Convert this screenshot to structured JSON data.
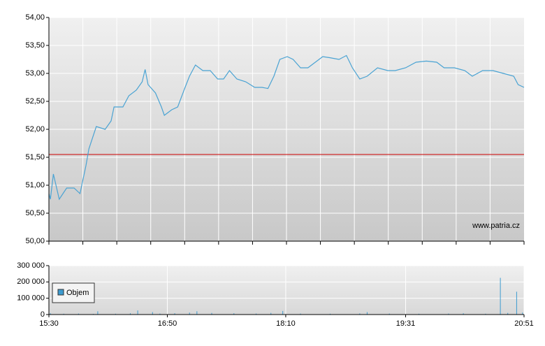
{
  "chart_data": [
    {
      "type": "line",
      "color": "#4aa3d3",
      "x": [
        "15:30",
        "15:31",
        "15:33",
        "15:37",
        "15:42",
        "15:47",
        "15:51",
        "15:55",
        "15:57",
        "16:02",
        "16:08",
        "16:12",
        "16:14",
        "16:20",
        "16:24",
        "16:29",
        "16:33",
        "16:35",
        "16:37",
        "16:42",
        "16:46",
        "16:48",
        "16:53",
        "16:57",
        "17:02",
        "17:05",
        "17:09",
        "17:14",
        "17:19",
        "17:24",
        "17:28",
        "17:32",
        "17:37",
        "17:43",
        "17:49",
        "17:54",
        "17:58",
        "18:02",
        "18:06",
        "18:11",
        "18:15",
        "18:20",
        "18:25",
        "18:30",
        "18:35",
        "18:40",
        "18:46",
        "18:51",
        "18:55",
        "19:00",
        "19:05",
        "19:12",
        "19:19",
        "19:24",
        "19:31",
        "19:38",
        "19:45",
        "19:52",
        "19:57",
        "20:04",
        "20:11",
        "20:16",
        "20:23",
        "20:30",
        "20:37",
        "20:44",
        "20:47",
        "20:51"
      ],
      "values": [
        50.85,
        50.75,
        51.2,
        50.75,
        50.95,
        50.95,
        50.85,
        51.35,
        51.65,
        52.05,
        52.0,
        52.15,
        52.4,
        52.4,
        52.6,
        52.7,
        52.85,
        53.07,
        52.8,
        52.65,
        52.4,
        52.25,
        52.35,
        52.4,
        52.75,
        52.95,
        53.15,
        53.05,
        53.05,
        52.9,
        52.9,
        53.05,
        52.9,
        52.85,
        52.75,
        52.75,
        52.73,
        52.95,
        53.25,
        53.3,
        53.25,
        53.1,
        53.1,
        53.2,
        53.3,
        53.28,
        53.25,
        53.32,
        53.1,
        52.9,
        52.95,
        53.1,
        53.05,
        53.05,
        53.1,
        53.2,
        53.22,
        53.2,
        53.1,
        53.1,
        53.05,
        52.95,
        53.05,
        53.05,
        53.0,
        52.95,
        52.8,
        52.75
      ],
      "xlim": [
        "15:30",
        "20:51"
      ],
      "ylim": [
        50,
        54
      ],
      "yticks": [
        {
          "value": 50,
          "label": "50,00"
        },
        {
          "value": 50.5,
          "label": "50,50"
        },
        {
          "value": 51,
          "label": "51,00"
        },
        {
          "value": 51.5,
          "label": "51,50"
        },
        {
          "value": 52,
          "label": "52,00"
        },
        {
          "value": 52.5,
          "label": "52,50"
        },
        {
          "value": 53,
          "label": "53,00"
        },
        {
          "value": 53.5,
          "label": "53,50"
        },
        {
          "value": 54,
          "label": "54,00"
        }
      ],
      "reference_line": {
        "value": 51.55,
        "color": "#cc0000"
      },
      "annotation": "www.patria.cz",
      "grid": true
    },
    {
      "type": "bar",
      "x": [
        "15:31",
        "15:40",
        "15:50",
        "16:00",
        "16:03",
        "16:15",
        "16:25",
        "16:30",
        "16:40",
        "16:45",
        "16:55",
        "17:05",
        "17:10",
        "17:20",
        "17:35",
        "17:50",
        "18:00",
        "18:08",
        "18:20",
        "18:40",
        "19:00",
        "19:05",
        "19:20",
        "19:40",
        "20:00",
        "20:10",
        "20:25",
        "20:35",
        "20:40",
        "20:46",
        "20:50"
      ],
      "series": [
        {
          "name": "Objem",
          "color": "#3c9bd0",
          "values": [
            8000,
            5000,
            6000,
            4000,
            20000,
            5000,
            8000,
            25000,
            15000,
            6000,
            8000,
            12000,
            20000,
            10000,
            8000,
            6000,
            10000,
            22000,
            6000,
            5000,
            7000,
            15000,
            6000,
            5000,
            6000,
            8000,
            5000,
            225000,
            10000,
            140000,
            12000
          ]
        }
      ],
      "xlim": [
        "15:30",
        "20:51"
      ],
      "xticks": [
        "15:30",
        "16:50",
        "18:10",
        "19:31",
        "20:51"
      ],
      "ylim": [
        0,
        300000
      ],
      "yticks": [
        0,
        {
          "value": 100000,
          "label": "100 000"
        },
        {
          "value": 200000,
          "label": "200 000"
        },
        {
          "value": 300000,
          "label": "300 000"
        }
      ],
      "legend": "bottom-left",
      "grid": true
    }
  ]
}
